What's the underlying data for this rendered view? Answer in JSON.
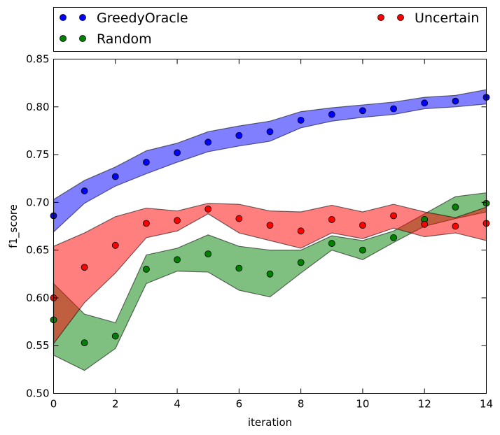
{
  "chart_data": {
    "type": "scatter",
    "xlabel": "iteration",
    "ylabel": "f1_score",
    "xlim": [
      0,
      14
    ],
    "ylim": [
      0.5,
      0.85
    ],
    "xticks": [
      0,
      2,
      4,
      6,
      8,
      10,
      12,
      14
    ],
    "yticks": [
      0.5,
      0.55,
      0.6,
      0.65,
      0.7,
      0.75,
      0.8,
      0.85
    ],
    "grid": false,
    "legend_placement": "above-plot",
    "series": [
      {
        "name": "GreedyOracle",
        "color": "#0000ff",
        "x": [
          0,
          1,
          2,
          3,
          4,
          5,
          6,
          7,
          8,
          9,
          10,
          11,
          12,
          13,
          14
        ],
        "y": [
          0.686,
          0.712,
          0.727,
          0.742,
          0.752,
          0.763,
          0.77,
          0.774,
          0.786,
          0.792,
          0.796,
          0.798,
          0.804,
          0.806,
          0.81
        ],
        "lower": [
          0.669,
          0.699,
          0.717,
          0.73,
          0.742,
          0.753,
          0.759,
          0.764,
          0.778,
          0.785,
          0.789,
          0.792,
          0.798,
          0.8,
          0.803
        ],
        "upper": [
          0.703,
          0.723,
          0.737,
          0.754,
          0.762,
          0.774,
          0.78,
          0.785,
          0.795,
          0.799,
          0.802,
          0.805,
          0.81,
          0.812,
          0.818
        ]
      },
      {
        "name": "Random",
        "color": "#008000",
        "x": [
          0,
          1,
          2,
          3,
          4,
          5,
          6,
          7,
          8,
          9,
          10,
          11,
          12,
          13,
          14
        ],
        "y": [
          0.577,
          0.553,
          0.56,
          0.63,
          0.64,
          0.646,
          0.631,
          0.625,
          0.637,
          0.657,
          0.65,
          0.663,
          0.682,
          0.695,
          0.699
        ],
        "lower": [
          0.54,
          0.524,
          0.547,
          0.615,
          0.628,
          0.627,
          0.608,
          0.601,
          0.626,
          0.65,
          0.64,
          0.658,
          0.675,
          0.683,
          0.69
        ],
        "upper": [
          0.615,
          0.583,
          0.574,
          0.645,
          0.652,
          0.666,
          0.654,
          0.65,
          0.65,
          0.665,
          0.66,
          0.67,
          0.688,
          0.706,
          0.71
        ]
      },
      {
        "name": "Uncertain",
        "color": "#ff0000",
        "x": [
          0,
          1,
          2,
          3,
          4,
          5,
          6,
          7,
          8,
          9,
          10,
          11,
          12,
          13,
          14
        ],
        "y": [
          0.6,
          0.632,
          0.655,
          0.678,
          0.681,
          0.693,
          0.683,
          0.676,
          0.67,
          0.682,
          0.676,
          0.686,
          0.677,
          0.675,
          0.678
        ],
        "lower": [
          0.552,
          0.595,
          0.626,
          0.663,
          0.67,
          0.688,
          0.668,
          0.66,
          0.652,
          0.668,
          0.662,
          0.673,
          0.664,
          0.668,
          0.66
        ],
        "upper": [
          0.654,
          0.668,
          0.685,
          0.694,
          0.691,
          0.699,
          0.698,
          0.691,
          0.69,
          0.697,
          0.69,
          0.698,
          0.69,
          0.684,
          0.695
        ]
      }
    ]
  }
}
